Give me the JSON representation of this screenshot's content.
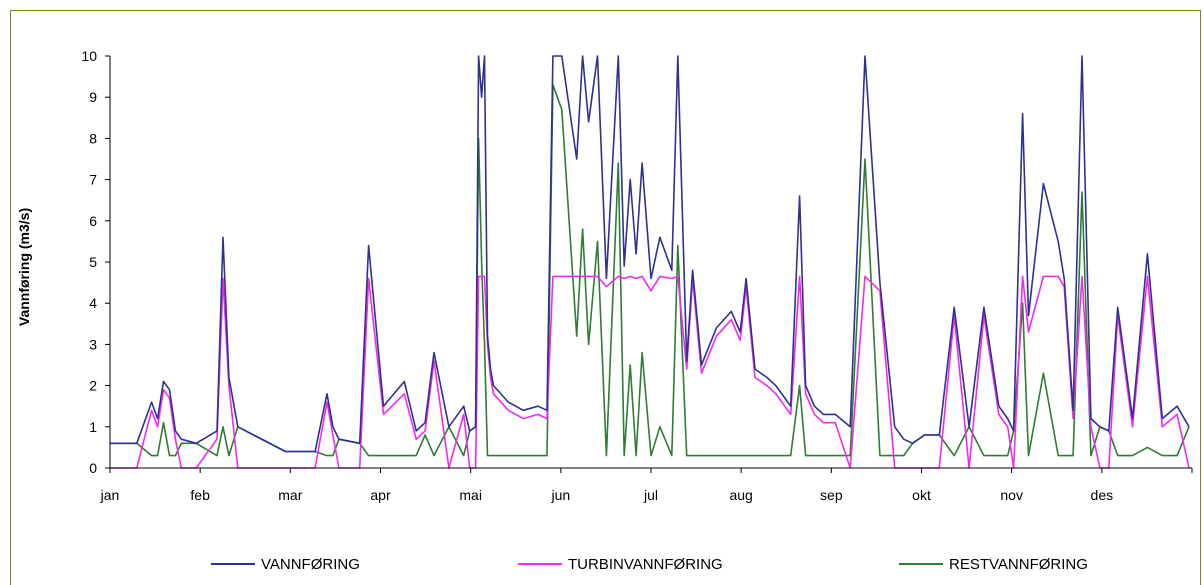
{
  "chart_data": {
    "type": "line",
    "ylabel": "Vannføring (m3/s)",
    "xlabel": "",
    "title": "",
    "ylim": [
      0,
      10
    ],
    "yticks": [
      "0",
      "1",
      "2",
      "3",
      "4",
      "5",
      "6",
      "7",
      "8",
      "9",
      "10"
    ],
    "categories": [
      "jan",
      "feb",
      "mar",
      "apr",
      "mai",
      "jun",
      "jul",
      "aug",
      "sep",
      "okt",
      "nov",
      "des"
    ],
    "grid": false,
    "legend": "bottom",
    "x": [
      1,
      10,
      15,
      17,
      19,
      21,
      23,
      25,
      30,
      37,
      39,
      41,
      44,
      60,
      70,
      74,
      76,
      78,
      85,
      88,
      93,
      100,
      104,
      107,
      110,
      115,
      120,
      122,
      124,
      125,
      126,
      127,
      128,
      129,
      130,
      135,
      140,
      145,
      148,
      150,
      153,
      158,
      160,
      162,
      165,
      168,
      172,
      174,
      176,
      178,
      180,
      183,
      186,
      190,
      192,
      195,
      197,
      200,
      205,
      210,
      213,
      215,
      218,
      222,
      225,
      230,
      233,
      235,
      238,
      241,
      245,
      250,
      255,
      260,
      265,
      268,
      271,
      275,
      280,
      285,
      290,
      295,
      300,
      303,
      305,
      308,
      310,
      315,
      320,
      322,
      325,
      328,
      331,
      334,
      337,
      340,
      345,
      350,
      355,
      360,
      364
    ],
    "series": [
      {
        "name": "VANNFØRING",
        "color": "#2e3192",
        "values": [
          0.6,
          0.6,
          1.6,
          1.2,
          2.1,
          1.9,
          0.9,
          0.7,
          0.6,
          0.9,
          5.6,
          2.2,
          1.0,
          0.4,
          0.4,
          1.8,
          1.0,
          0.7,
          0.6,
          5.4,
          1.5,
          2.1,
          0.9,
          1.1,
          2.8,
          1.0,
          1.5,
          0.9,
          1.0,
          10,
          9.0,
          10,
          3.2,
          2.4,
          2.0,
          1.6,
          1.4,
          1.5,
          1.4,
          10,
          10,
          7.5,
          10,
          8.4,
          10,
          4.6,
          10,
          4.9,
          7.0,
          5.2,
          7.4,
          4.6,
          5.6,
          4.8,
          10,
          2.6,
          4.8,
          2.5,
          3.4,
          3.8,
          3.3,
          4.6,
          2.4,
          2.2,
          2.0,
          1.5,
          6.6,
          2.0,
          1.5,
          1.3,
          1.3,
          1.0,
          10,
          4.5,
          1.0,
          0.7,
          0.6,
          0.8,
          0.8,
          3.9,
          1.0,
          3.9,
          1.5,
          1.2,
          0.9,
          8.6,
          3.7,
          6.9,
          5.5,
          4.6,
          1.4,
          10,
          1.2,
          1.0,
          0.9,
          3.9,
          1.2,
          5.2,
          1.2,
          1.5,
          1.0
        ]
      },
      {
        "name": "TURBINVANNFØRING",
        "color": "#ee2cee",
        "values": [
          0,
          0,
          1.4,
          1.0,
          1.9,
          1.7,
          0.7,
          0,
          0,
          0.7,
          4.6,
          2.0,
          0,
          0,
          0,
          1.6,
          0.8,
          0,
          0,
          4.6,
          1.3,
          1.8,
          0.7,
          0.9,
          2.6,
          0,
          1.3,
          0,
          0,
          4.65,
          4.65,
          4.65,
          3.0,
          2.2,
          1.8,
          1.4,
          1.2,
          1.3,
          1.2,
          4.65,
          4.65,
          4.65,
          4.65,
          4.65,
          4.65,
          4.4,
          4.65,
          4.6,
          4.65,
          4.6,
          4.65,
          4.3,
          4.65,
          4.6,
          4.65,
          2.4,
          4.6,
          2.3,
          3.2,
          3.6,
          3.1,
          4.4,
          2.2,
          2.0,
          1.8,
          1.3,
          4.65,
          1.8,
          1.3,
          1.1,
          1.1,
          0,
          4.65,
          4.3,
          0,
          0,
          0,
          0,
          0,
          3.7,
          0,
          3.7,
          1.3,
          1.0,
          0,
          4.65,
          3.3,
          4.65,
          4.65,
          4.4,
          1.2,
          4.65,
          1.0,
          0,
          0,
          3.7,
          1.0,
          4.65,
          1.0,
          1.3,
          0
        ]
      },
      {
        "name": "RESTVANNFØRING",
        "color": "#2e7d32",
        "values": [
          0.6,
          0.6,
          0.3,
          0.3,
          1.1,
          0.3,
          0.3,
          0.6,
          0.6,
          0.3,
          1.0,
          0.3,
          1.0,
          0.4,
          0.4,
          0.3,
          0.3,
          0.7,
          0.6,
          0.3,
          0.3,
          0.3,
          0.3,
          0.8,
          0.3,
          1.0,
          0.3,
          0.9,
          1.0,
          8.0,
          5.0,
          3.0,
          0.3,
          0.3,
          0.3,
          0.3,
          0.3,
          0.3,
          0.3,
          9.3,
          8.7,
          3.2,
          5.8,
          3.0,
          5.5,
          0.3,
          7.4,
          0.3,
          2.5,
          0.3,
          2.8,
          0.3,
          1.0,
          0.3,
          5.4,
          0.3,
          0.3,
          0.3,
          0.3,
          0.3,
          0.3,
          0.3,
          0.3,
          0.3,
          0.3,
          0.3,
          2.0,
          0.3,
          0.3,
          0.3,
          0.3,
          0.3,
          7.5,
          0.3,
          0.3,
          0.3,
          0.6,
          0.8,
          0.8,
          0.3,
          1.0,
          0.3,
          0.3,
          0.3,
          0.9,
          4.0,
          0.3,
          2.3,
          0.3,
          0.3,
          0.3,
          6.7,
          0.3,
          1.0,
          0.9,
          0.3,
          0.3,
          0.5,
          0.3,
          0.3,
          1.0
        ]
      }
    ]
  }
}
